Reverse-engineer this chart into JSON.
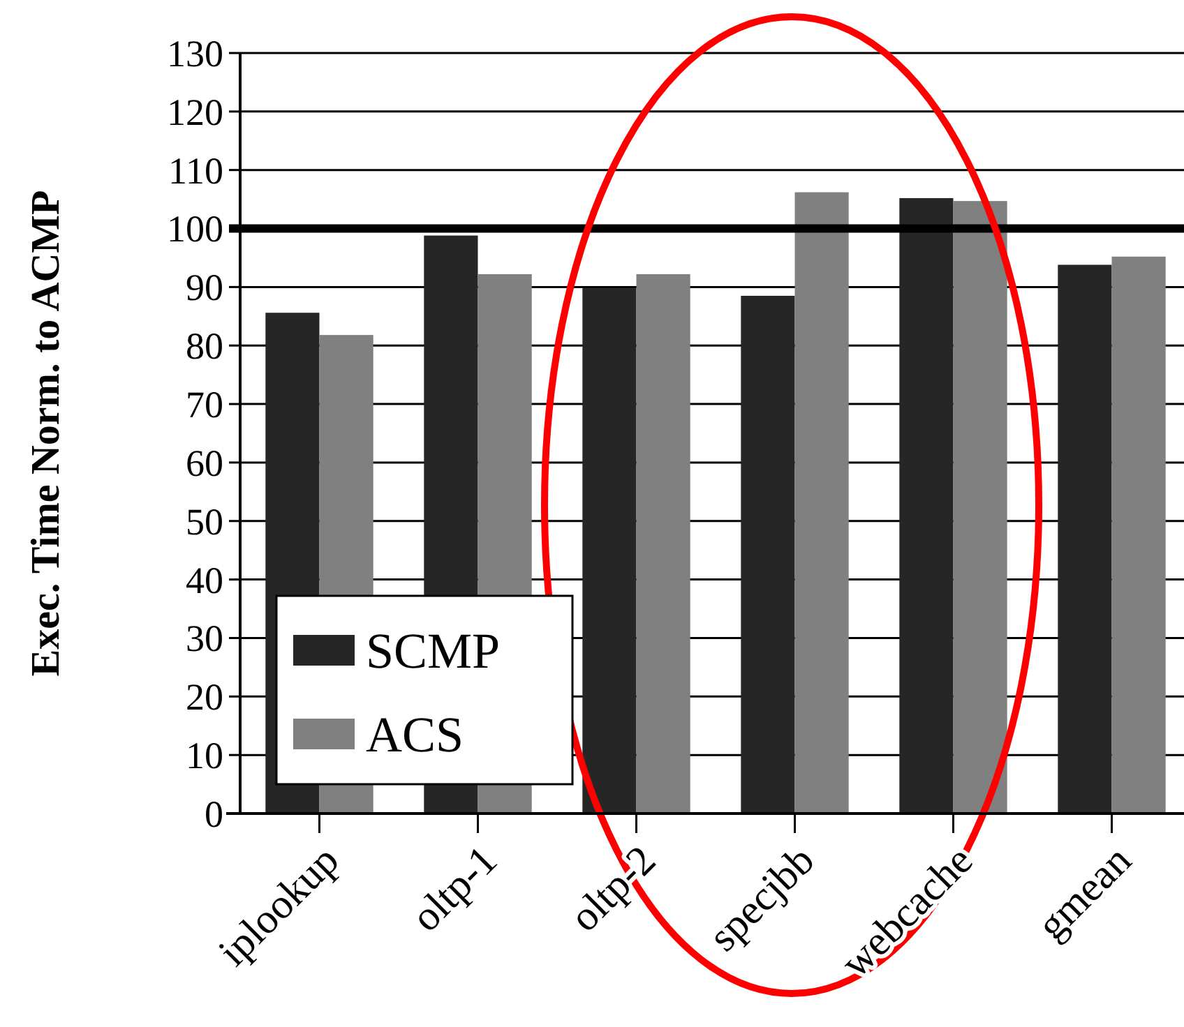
{
  "chart_data": {
    "type": "bar",
    "ylabel": "Exec. Time Norm. to ACMP",
    "categories": [
      "iplookup",
      "oltp-1",
      "oltp-2",
      "specjbb",
      "webcache",
      "gmean"
    ],
    "series": [
      {
        "name": "SCMP",
        "color": "#262626",
        "values": [
          85.6,
          98.8,
          89.8,
          88.5,
          105.2,
          93.8
        ]
      },
      {
        "name": "ACS",
        "color": "#808080",
        "values": [
          81.8,
          92.2,
          92.2,
          106.2,
          104.7,
          95.2
        ]
      }
    ],
    "ylim": [
      0,
      130
    ],
    "yticks": [
      0,
      10,
      20,
      30,
      40,
      50,
      60,
      70,
      80,
      90,
      100,
      110,
      120,
      130
    ],
    "grid": "y",
    "legend": "bottom left",
    "ref_lines": [
      {
        "axis": "y",
        "value": 100,
        "color": "#000000"
      }
    ]
  }
}
